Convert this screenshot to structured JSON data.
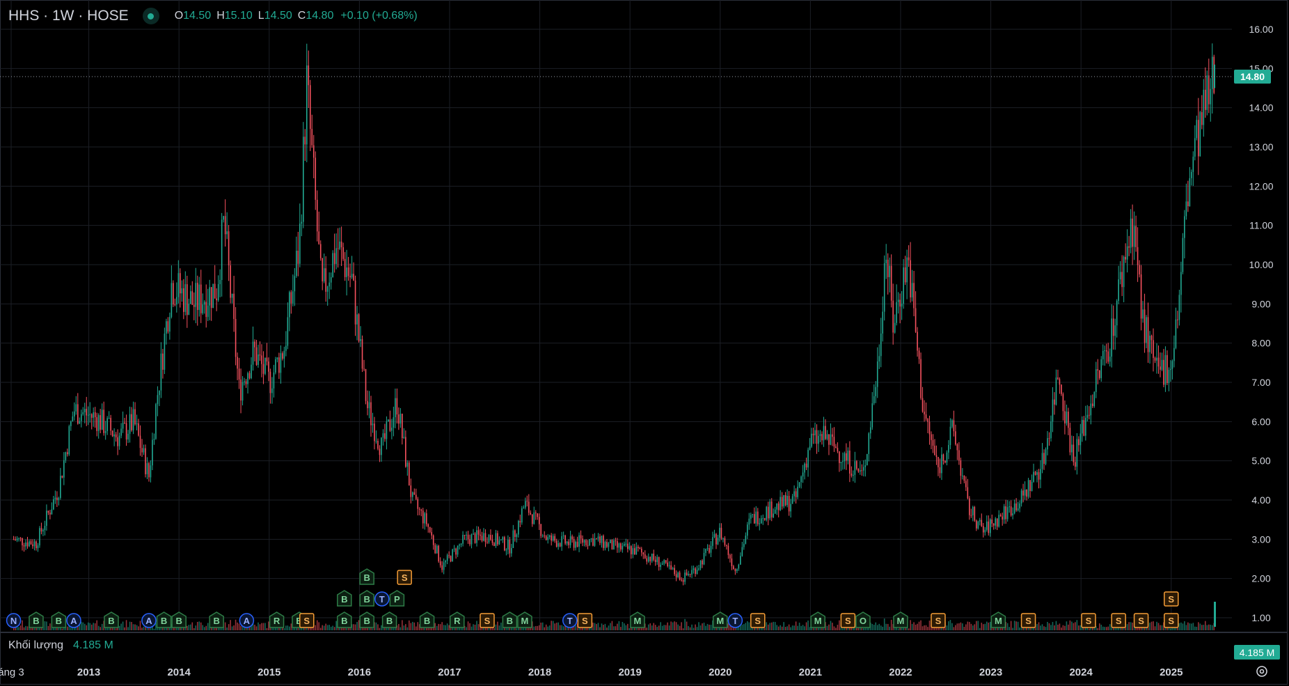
{
  "header": {
    "symbol": "HHS · 1W · HOSE",
    "open_label": "O",
    "open": "14.50",
    "high_label": "H",
    "high": "15.10",
    "low_label": "L",
    "low": "14.50",
    "close_label": "C",
    "close": "14.80",
    "change": "+0.10 (+0.68%)"
  },
  "volume": {
    "label": "Khối lượng",
    "value": "4.185 M",
    "tag": "4.185 M"
  },
  "price_tag": "14.80",
  "colors": {
    "up": "#22ab94",
    "down": "#f7525f",
    "grid": "#1c1f26",
    "axis_text": "#d1d4dc",
    "marker_green": "#2e7d47",
    "marker_blue": "#2962ff",
    "marker_orange": "#f59d36"
  },
  "icons": [
    "status-dot-icon",
    "settings-gear-icon"
  ],
  "chart_data": {
    "type": "candlestick",
    "interval": "1W",
    "ylim": [
      0.5,
      16.5
    ],
    "y_ticks": [
      "16.00",
      "15.00",
      "14.00",
      "13.00",
      "12.00",
      "11.00",
      "10.00",
      "9.00",
      "8.00",
      "7.00",
      "6.00",
      "5.00",
      "4.00",
      "3.00",
      "2.00",
      "1.00"
    ],
    "x_ticks": [
      "áng 3",
      "2013",
      "2014",
      "2015",
      "2016",
      "2017",
      "2018",
      "2019",
      "2020",
      "2021",
      "2022",
      "2023",
      "2024",
      "2025"
    ],
    "close_trend": [
      [
        "2012-03",
        3.0
      ],
      [
        "2012-06",
        2.9
      ],
      [
        "2012-09",
        4.3
      ],
      [
        "2012-11",
        6.3
      ],
      [
        "2013-02",
        6.1
      ],
      [
        "2013-05",
        5.6
      ],
      [
        "2013-07",
        6.0
      ],
      [
        "2013-09",
        4.6
      ],
      [
        "2013-10",
        6.5
      ],
      [
        "2013-12",
        9.5
      ],
      [
        "2014-03",
        9.0
      ],
      [
        "2014-06",
        9.4
      ],
      [
        "2014-07",
        11.1
      ],
      [
        "2014-09",
        6.8
      ],
      [
        "2014-11",
        7.8
      ],
      [
        "2015-01",
        7.0
      ],
      [
        "2015-03",
        7.9
      ],
      [
        "2015-05",
        10.5
      ],
      [
        "2015-06",
        14.6
      ],
      [
        "2015-08",
        9.2
      ],
      [
        "2015-10",
        10.5
      ],
      [
        "2015-12",
        9.6
      ],
      [
        "2016-02",
        6.4
      ],
      [
        "2016-04",
        5.3
      ],
      [
        "2016-06",
        6.5
      ],
      [
        "2016-08",
        4.0
      ],
      [
        "2016-10",
        3.4
      ],
      [
        "2016-12",
        2.3
      ],
      [
        "2017-03",
        3.0
      ],
      [
        "2017-06",
        3.1
      ],
      [
        "2017-09",
        2.8
      ],
      [
        "2017-11",
        3.9
      ],
      [
        "2018-02",
        3.0
      ],
      [
        "2018-05",
        2.9
      ],
      [
        "2018-08",
        3.0
      ],
      [
        "2018-11",
        2.8
      ],
      [
        "2019-02",
        2.7
      ],
      [
        "2019-05",
        2.4
      ],
      [
        "2019-08",
        2.0
      ],
      [
        "2019-10",
        2.3
      ],
      [
        "2020-01",
        3.2
      ],
      [
        "2020-03",
        2.2
      ],
      [
        "2020-05",
        3.5
      ],
      [
        "2020-08",
        3.8
      ],
      [
        "2020-11",
        4.0
      ],
      [
        "2021-01",
        5.5
      ],
      [
        "2021-03",
        5.6
      ],
      [
        "2021-06",
        5.0
      ],
      [
        "2021-08",
        4.6
      ],
      [
        "2021-10",
        7.5
      ],
      [
        "2021-11",
        10.5
      ],
      [
        "2021-12",
        8.5
      ],
      [
        "2022-02",
        10.2
      ],
      [
        "2022-04",
        6.3
      ],
      [
        "2022-06",
        4.8
      ],
      [
        "2022-08",
        5.8
      ],
      [
        "2022-10",
        3.8
      ],
      [
        "2022-12",
        3.2
      ],
      [
        "2023-03",
        3.7
      ],
      [
        "2023-05",
        4.0
      ],
      [
        "2023-08",
        5.0
      ],
      [
        "2023-10",
        7.3
      ],
      [
        "2023-12",
        5.0
      ],
      [
        "2024-03",
        7.0
      ],
      [
        "2024-05",
        8.2
      ],
      [
        "2024-07",
        10.4
      ],
      [
        "2024-08",
        11.2
      ],
      [
        "2024-09",
        8.8
      ],
      [
        "2024-11",
        7.2
      ],
      [
        "2025-01",
        7.5
      ],
      [
        "2025-02",
        9.0
      ],
      [
        "2025-03",
        11.5
      ],
      [
        "2025-04",
        12.8
      ],
      [
        "2025-05",
        14.8
      ]
    ],
    "last_price": 14.8,
    "event_markers": [
      {
        "t": "2012-03",
        "label": "N",
        "kind": "blue",
        "row": 0
      },
      {
        "t": "2012-06",
        "label": "B",
        "kind": "green",
        "row": 0
      },
      {
        "t": "2012-09",
        "label": "B",
        "kind": "green",
        "row": 0
      },
      {
        "t": "2012-11",
        "label": "A",
        "kind": "blue",
        "row": 0
      },
      {
        "t": "2013-04",
        "label": "B",
        "kind": "green",
        "row": 0
      },
      {
        "t": "2013-09",
        "label": "A",
        "kind": "blue",
        "row": 0
      },
      {
        "t": "2013-11",
        "label": "B",
        "kind": "green",
        "row": 0
      },
      {
        "t": "2014-01",
        "label": "B",
        "kind": "green",
        "row": 0
      },
      {
        "t": "2014-06",
        "label": "B",
        "kind": "green",
        "row": 0
      },
      {
        "t": "2014-10",
        "label": "A",
        "kind": "blue",
        "row": 0
      },
      {
        "t": "2015-02",
        "label": "R",
        "kind": "green",
        "row": 0
      },
      {
        "t": "2015-05",
        "label": "B",
        "kind": "green",
        "row": 0
      },
      {
        "t": "2015-06",
        "label": "S",
        "kind": "orange",
        "row": 0
      },
      {
        "t": "2015-11",
        "label": "B",
        "kind": "green",
        "row": 0
      },
      {
        "t": "2016-02",
        "label": "B",
        "kind": "green",
        "row": 0
      },
      {
        "t": "2016-05",
        "label": "B",
        "kind": "green",
        "row": 0
      },
      {
        "t": "2016-10",
        "label": "B",
        "kind": "green",
        "row": 0
      },
      {
        "t": "2017-02",
        "label": "R",
        "kind": "green",
        "row": 0
      },
      {
        "t": "2017-06",
        "label": "S",
        "kind": "orange",
        "row": 0
      },
      {
        "t": "2017-09",
        "label": "B",
        "kind": "green",
        "row": 0
      },
      {
        "t": "2017-11",
        "label": "M",
        "kind": "green",
        "row": 0
      },
      {
        "t": "2018-05",
        "label": "T",
        "kind": "blue",
        "row": 0
      },
      {
        "t": "2018-07",
        "label": "S",
        "kind": "orange",
        "row": 0
      },
      {
        "t": "2019-02",
        "label": "M",
        "kind": "green",
        "row": 0
      },
      {
        "t": "2020-01",
        "label": "M",
        "kind": "green",
        "row": 0
      },
      {
        "t": "2020-03",
        "label": "T",
        "kind": "blue",
        "row": 0
      },
      {
        "t": "2020-06",
        "label": "S",
        "kind": "orange",
        "row": 0
      },
      {
        "t": "2021-02",
        "label": "M",
        "kind": "green",
        "row": 0
      },
      {
        "t": "2021-06",
        "label": "S",
        "kind": "orange",
        "row": 0
      },
      {
        "t": "2021-08",
        "label": "O",
        "kind": "green",
        "row": 0
      },
      {
        "t": "2022-01",
        "label": "M",
        "kind": "green",
        "row": 0
      },
      {
        "t": "2022-06",
        "label": "S",
        "kind": "orange",
        "row": 0
      },
      {
        "t": "2023-02",
        "label": "M",
        "kind": "green",
        "row": 0
      },
      {
        "t": "2023-06",
        "label": "S",
        "kind": "orange",
        "row": 0
      },
      {
        "t": "2024-02",
        "label": "S",
        "kind": "orange",
        "row": 0
      },
      {
        "t": "2024-06",
        "label": "S",
        "kind": "orange",
        "row": 0
      },
      {
        "t": "2024-09",
        "label": "S",
        "kind": "orange",
        "row": 0
      },
      {
        "t": "2025-01",
        "label": "S",
        "kind": "orange",
        "row": 0
      },
      {
        "t": "2015-11",
        "label": "B",
        "kind": "green",
        "row": 1
      },
      {
        "t": "2016-02",
        "label": "B",
        "kind": "green",
        "row": 1
      },
      {
        "t": "2016-04",
        "label": "T",
        "kind": "blue",
        "row": 1
      },
      {
        "t": "2016-06",
        "label": "P",
        "kind": "green",
        "row": 1
      },
      {
        "t": "2025-01",
        "label": "S",
        "kind": "orange",
        "row": 1
      },
      {
        "t": "2016-02",
        "label": "B",
        "kind": "green",
        "row": 2
      },
      {
        "t": "2016-07",
        "label": "S",
        "kind": "orange",
        "row": 2
      }
    ]
  }
}
